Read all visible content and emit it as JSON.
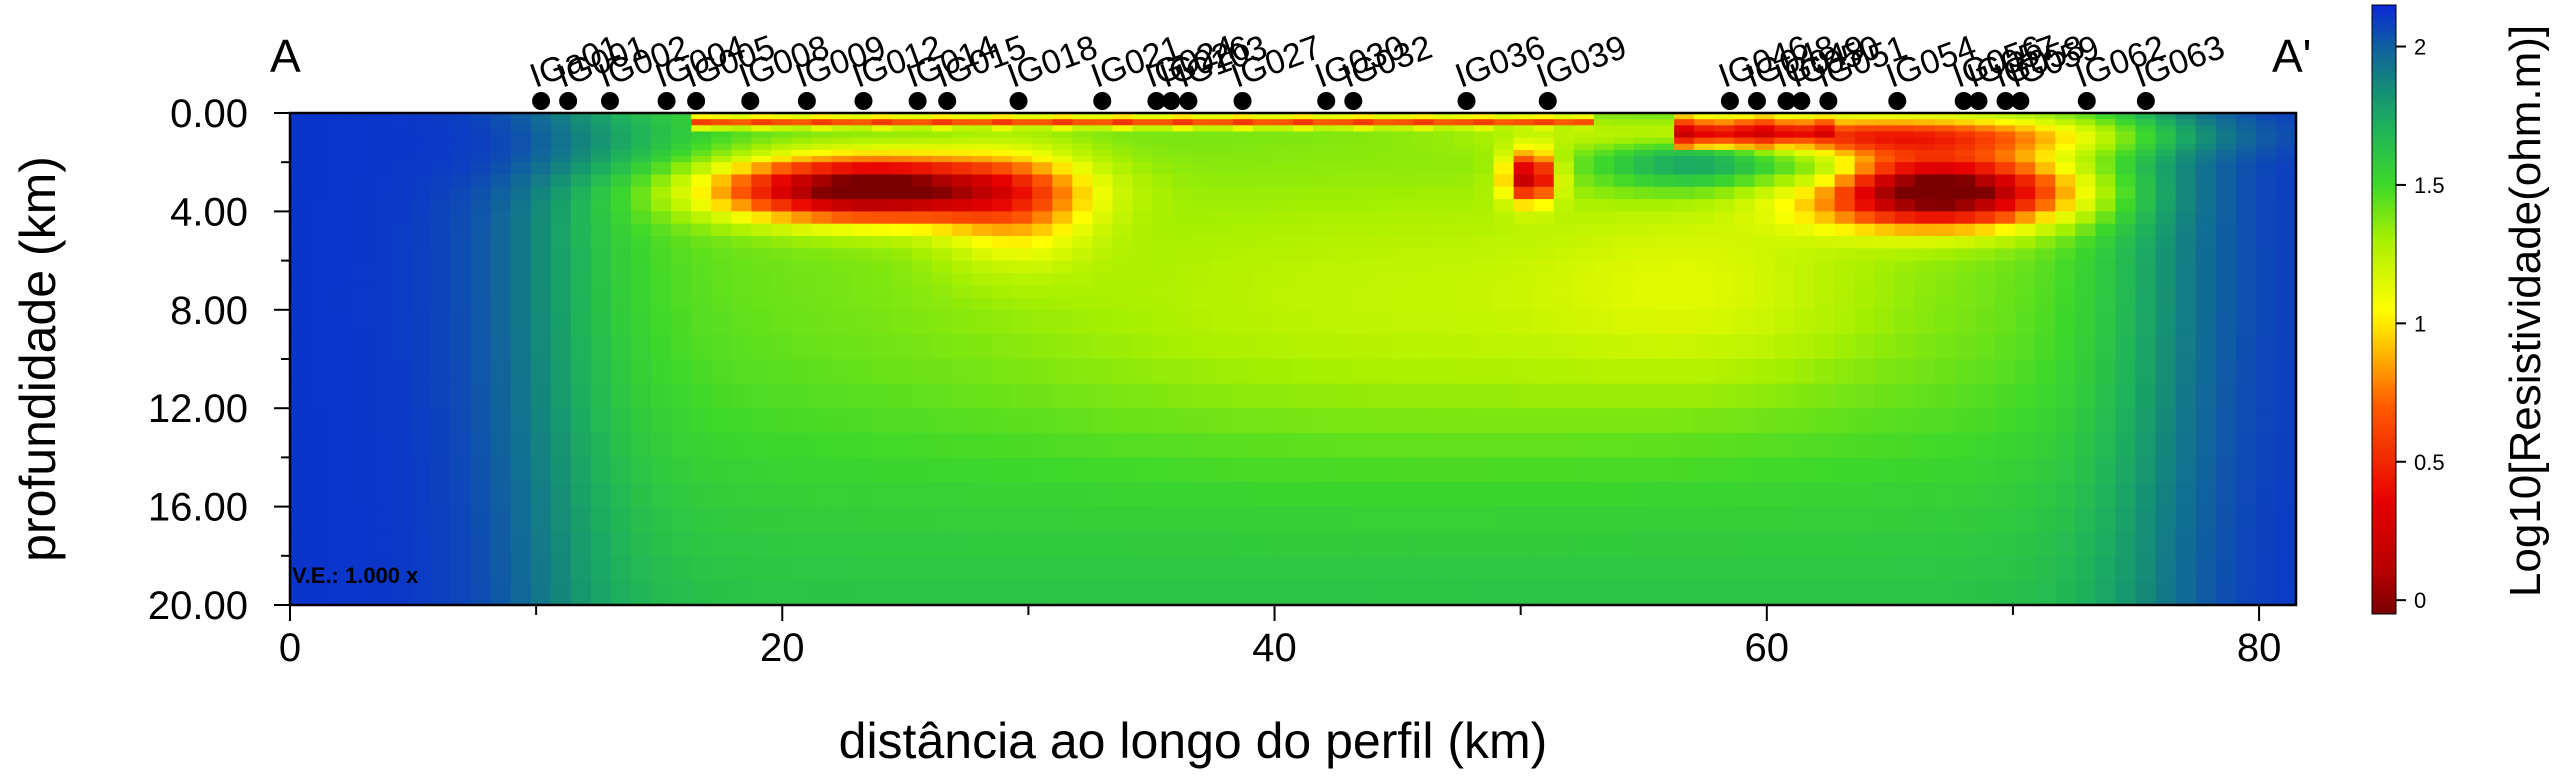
{
  "chart_data": {
    "type": "heatmap",
    "title": "",
    "profile_start_label": "A",
    "profile_end_label": "A'",
    "xlabel": "distância ao longo do perfil (km)",
    "ylabel": "profundidade (km)",
    "colorbar_label": "Log10[Resistividade(ohm.m)]",
    "vertical_exaggeration": "V.E.: 1.000 x",
    "xlim": [
      0,
      81.5
    ],
    "ylim": [
      0,
      20
    ],
    "x_ticks": [
      0,
      20,
      40,
      60,
      80
    ],
    "x_tick_labels": [
      "0",
      "20",
      "40",
      "60",
      "80"
    ],
    "y_ticks": [
      0,
      4,
      8,
      12,
      16,
      20
    ],
    "y_tick_labels": [
      "0.00",
      "4.00",
      "8.00",
      "12.00",
      "16.00",
      "20.00"
    ],
    "colorbar_range": [
      -0.05,
      2.15
    ],
    "colorbar_ticks": [
      0,
      0.5,
      1,
      1.5,
      2
    ],
    "colorbar_tick_labels": [
      "0",
      "0.5",
      "1",
      "1.5",
      "2"
    ],
    "colorscale": [
      {
        "value": -0.05,
        "color": "#7a0000"
      },
      {
        "value": 0.1,
        "color": "#b40000"
      },
      {
        "value": 0.35,
        "color": "#e60000"
      },
      {
        "value": 0.7,
        "color": "#ff5a00"
      },
      {
        "value": 0.95,
        "color": "#ffd200"
      },
      {
        "value": 1.05,
        "color": "#ffff00"
      },
      {
        "value": 1.3,
        "color": "#a8f000"
      },
      {
        "value": 1.5,
        "color": "#3ed82a"
      },
      {
        "value": 1.7,
        "color": "#1fb45a"
      },
      {
        "value": 1.85,
        "color": "#148c78"
      },
      {
        "value": 2.0,
        "color": "#1060a0"
      },
      {
        "value": 2.15,
        "color": "#0a28d8"
      }
    ],
    "stations": [
      {
        "name": "IGa01",
        "x": 10.2
      },
      {
        "name": "IG001",
        "x": 11.3
      },
      {
        "name": "IG002",
        "x": 13.0
      },
      {
        "name": "IG004",
        "x": 15.3
      },
      {
        "name": "IG005",
        "x": 16.5
      },
      {
        "name": "IG008",
        "x": 18.7
      },
      {
        "name": "IG009",
        "x": 21.0
      },
      {
        "name": "IG012",
        "x": 23.3
      },
      {
        "name": "IG014",
        "x": 25.5
      },
      {
        "name": "IG015",
        "x": 26.7
      },
      {
        "name": "IG018",
        "x": 29.6
      },
      {
        "name": "IG021",
        "x": 33.0
      },
      {
        "name": "IG024",
        "x": 35.2
      },
      {
        "name": "IG026",
        "x": 35.8
      },
      {
        "name": "IG103",
        "x": 36.5
      },
      {
        "name": "IG027",
        "x": 38.7
      },
      {
        "name": "IG030",
        "x": 42.1
      },
      {
        "name": "IG032",
        "x": 43.2
      },
      {
        "name": "IG036",
        "x": 47.8
      },
      {
        "name": "IG039",
        "x": 51.1
      },
      {
        "name": "IG046",
        "x": 58.5
      },
      {
        "name": "IG048",
        "x": 59.6
      },
      {
        "name": "IG049",
        "x": 60.8
      },
      {
        "name": "IG050",
        "x": 61.4
      },
      {
        "name": "IG051",
        "x": 62.5
      },
      {
        "name": "IG054",
        "x": 65.3
      },
      {
        "name": "IG056",
        "x": 68.0
      },
      {
        "name": "IG057",
        "x": 68.6
      },
      {
        "name": "IG058",
        "x": 69.7
      },
      {
        "name": "IG059",
        "x": 70.3
      },
      {
        "name": "IG062",
        "x": 73.0
      },
      {
        "name": "IG063",
        "x": 75.4
      }
    ],
    "grid": false,
    "legend": "colorbar-right"
  }
}
